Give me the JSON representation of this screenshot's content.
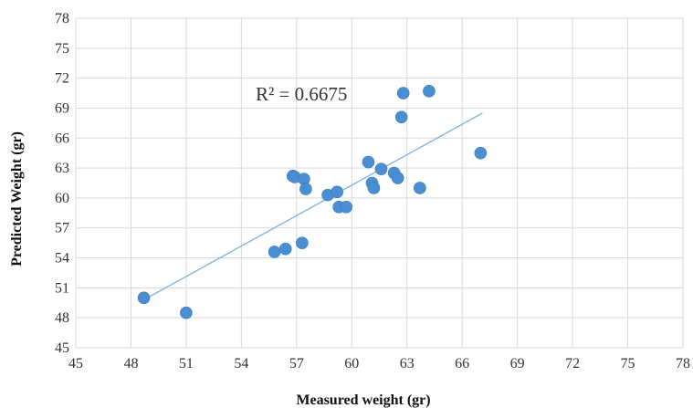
{
  "chart_data": {
    "type": "scatter",
    "title": "",
    "xlabel": "Measured weight (gr)",
    "ylabel": "Predicted Weight (gr)",
    "xlim": [
      45,
      78
    ],
    "ylim": [
      45,
      78
    ],
    "x_ticks": [
      45,
      48,
      51,
      54,
      57,
      60,
      63,
      66,
      69,
      72,
      75,
      78
    ],
    "y_ticks": [
      45,
      48,
      51,
      54,
      57,
      60,
      63,
      66,
      69,
      72,
      75,
      78
    ],
    "grid": true,
    "legend": "none",
    "point_color": "#4a8fd4",
    "trendline_color": "#7fb0dc",
    "annotation": "R² = 0.6675",
    "trendline": {
      "x": [
        48.7,
        67.1
      ],
      "y": [
        49.8,
        68.5
      ]
    },
    "points": [
      {
        "x": 48.7,
        "y": 50.0
      },
      {
        "x": 51.0,
        "y": 48.5
      },
      {
        "x": 55.8,
        "y": 54.6
      },
      {
        "x": 56.4,
        "y": 54.9
      },
      {
        "x": 56.8,
        "y": 62.2
      },
      {
        "x": 56.9,
        "y": 62.1
      },
      {
        "x": 57.3,
        "y": 55.5
      },
      {
        "x": 57.4,
        "y": 61.9
      },
      {
        "x": 57.5,
        "y": 60.9
      },
      {
        "x": 58.7,
        "y": 60.3
      },
      {
        "x": 59.2,
        "y": 60.6
      },
      {
        "x": 59.3,
        "y": 59.1
      },
      {
        "x": 59.7,
        "y": 59.1
      },
      {
        "x": 60.9,
        "y": 63.6
      },
      {
        "x": 61.1,
        "y": 61.5
      },
      {
        "x": 61.2,
        "y": 61.0
      },
      {
        "x": 61.6,
        "y": 62.9
      },
      {
        "x": 62.3,
        "y": 62.5
      },
      {
        "x": 62.5,
        "y": 62.0
      },
      {
        "x": 62.7,
        "y": 68.1
      },
      {
        "x": 62.8,
        "y": 70.5
      },
      {
        "x": 63.7,
        "y": 61.0
      },
      {
        "x": 64.2,
        "y": 70.7
      },
      {
        "x": 67.0,
        "y": 64.5
      }
    ]
  }
}
